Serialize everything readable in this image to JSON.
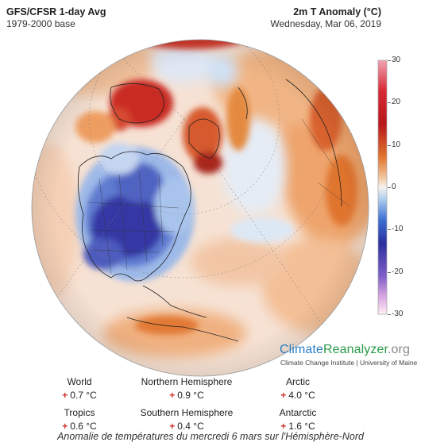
{
  "header": {
    "title": "GFS/CFSR 1-day Avg",
    "base": "1979-2000 base",
    "variable": "2m T Anomaly (°C)",
    "date": "Wednesday, Mar 06, 2019"
  },
  "colorbar": {
    "ticks": [
      "30",
      "20",
      "10",
      "0",
      "-10",
      "-20",
      "-30"
    ],
    "range": [
      -30,
      30
    ],
    "colors": [
      "#fff0f5",
      "#d9a6e0",
      "#7e5fc8",
      "#2b2f9e",
      "#3b6fd3",
      "#9cc5ee",
      "#f6f3ef",
      "#f3c49b",
      "#e07a35",
      "#c4311f",
      "#9c0f1a",
      "#f2a3b2"
    ]
  },
  "credit": {
    "logo_part1": "Climate",
    "logo_part2": "Reanalyzer",
    "logo_part3": ".org",
    "subtitle": "Climate Change Institute | University of Maine"
  },
  "stats": [
    {
      "label": "World",
      "sign": "+",
      "value": "0.7 °C"
    },
    {
      "label": "Northern Hemisphere",
      "sign": "+",
      "value": "0.9 °C"
    },
    {
      "label": "Arctic",
      "sign": "+",
      "value": "4.0 °C"
    },
    {
      "label": "Tropics",
      "sign": "+",
      "value": "0.6 °C"
    },
    {
      "label": "Southern Hemisphere",
      "sign": "+",
      "value": "0.4 °C"
    },
    {
      "label": "Antarctic",
      "sign": "+",
      "value": "1.6 °C"
    }
  ],
  "caption": "Anomalie de températures du mercredi 6 mars sur l'Hémisphère-Nord",
  "map_colors": {
    "background": "#f6e6dc",
    "warm_light": "#f3c7a5",
    "warm": "#e8873f",
    "hot": "#c8241e",
    "cold_light": "#b9d4f0",
    "cold": "#4a67c8",
    "very_cold": "#2a2f96",
    "neutral": "#f7f1ec"
  }
}
